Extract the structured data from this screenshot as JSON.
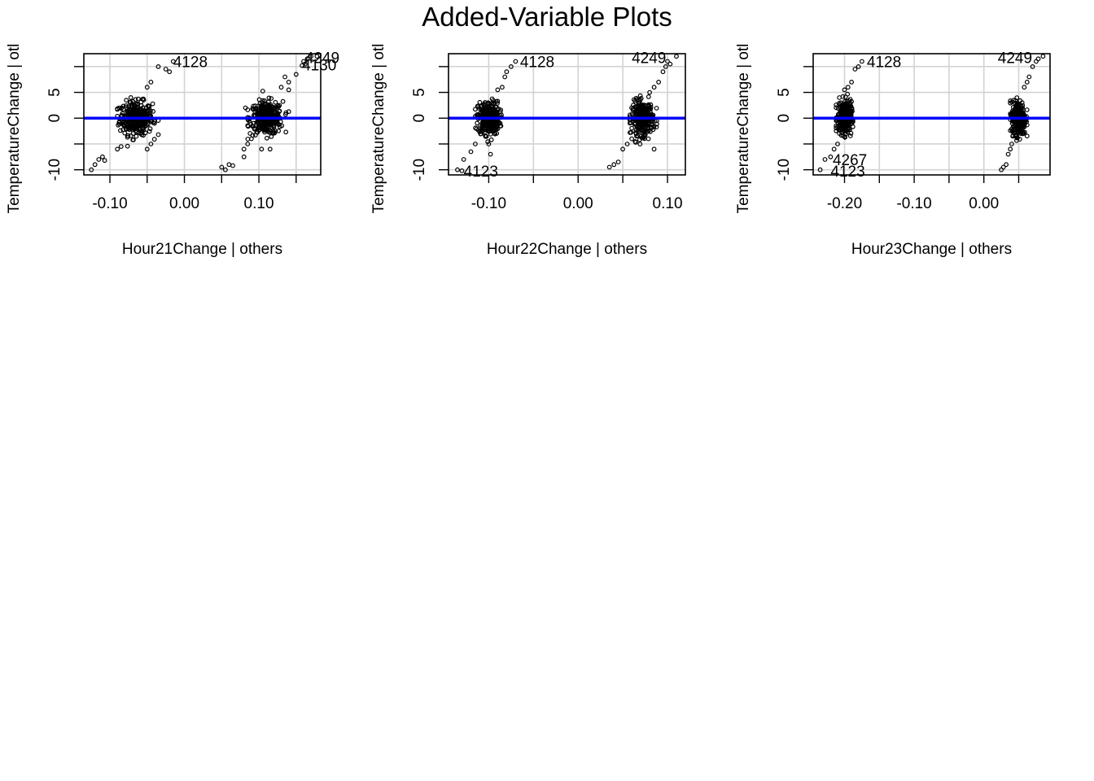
{
  "figure": {
    "title": "Added-Variable Plots"
  },
  "chart_data": [
    {
      "type": "scatter",
      "title": "",
      "xlabel": "Hour21Change | others",
      "ylabel": "TemperatureChange  | otl",
      "xlim": [
        -0.135,
        0.183
      ],
      "ylim": [
        -11,
        12.5
      ],
      "xticks": [
        -0.1,
        0.0,
        0.1
      ],
      "xtick_labels": [
        "-0.10",
        "0.00",
        "0.10"
      ],
      "yticks": [
        -10,
        0,
        5
      ],
      "ytick_labels": [
        "-10",
        "0",
        "5"
      ],
      "grid": true,
      "fit_line": {
        "slope": 0,
        "intercept": 0,
        "color": "#0000ff"
      },
      "clusters": [
        {
          "cx": -0.065,
          "cy": 0,
          "sx": 0.011,
          "sy": 1.6,
          "n": 320,
          "xmin": -0.09,
          "xmax": -0.035,
          "ymin": -6,
          "ymax": 5.5
        },
        {
          "cx": 0.11,
          "cy": 0,
          "sx": 0.011,
          "sy": 1.6,
          "n": 320,
          "xmin": 0.085,
          "xmax": 0.14,
          "ymin": -6,
          "ymax": 5.5
        }
      ],
      "points": [
        [
          -0.125,
          -10
        ],
        [
          -0.12,
          -9
        ],
        [
          -0.115,
          -8
        ],
        [
          -0.11,
          -7.5
        ],
        [
          -0.107,
          -8.2
        ],
        [
          -0.09,
          -6
        ],
        [
          -0.085,
          -5.5
        ],
        [
          -0.05,
          -6
        ],
        [
          -0.045,
          -5
        ],
        [
          -0.04,
          -1
        ],
        [
          -0.045,
          7
        ],
        [
          -0.035,
          10
        ],
        [
          -0.025,
          9.5
        ],
        [
          -0.02,
          9
        ],
        [
          -0.015,
          11
        ],
        [
          -0.05,
          6
        ],
        [
          0.05,
          -9.5
        ],
        [
          0.055,
          -10
        ],
        [
          0.06,
          -9
        ],
        [
          0.065,
          -9.2
        ],
        [
          0.08,
          -7.5
        ],
        [
          0.08,
          -6
        ],
        [
          0.085,
          -5
        ],
        [
          0.09,
          -4
        ],
        [
          0.082,
          2
        ],
        [
          0.115,
          -6
        ],
        [
          0.13,
          6
        ],
        [
          0.14,
          7
        ],
        [
          0.14,
          5.5
        ],
        [
          0.135,
          8
        ],
        [
          0.15,
          8.5
        ],
        [
          0.16,
          11
        ],
        [
          0.165,
          11.5
        ],
        [
          0.17,
          12
        ],
        [
          0.162,
          10.5
        ],
        [
          0.158,
          10.2
        ],
        [
          0.178,
          12
        ]
      ],
      "labels": [
        {
          "text": "4128",
          "x": -0.015,
          "y": 11
        },
        {
          "text": "4249",
          "x": 0.162,
          "y": 11.8
        },
        {
          "text": "4130",
          "x": 0.158,
          "y": 10.4
        }
      ]
    },
    {
      "type": "scatter",
      "title": "",
      "xlabel": "Hour22Change | others",
      "ylabel": "TemperatureChange  | otl",
      "xlim": [
        -0.145,
        0.12
      ],
      "ylim": [
        -11,
        12.5
      ],
      "xticks": [
        -0.1,
        0.0,
        0.1
      ],
      "xtick_labels": [
        "-0.10",
        "0.00",
        "0.10"
      ],
      "yticks": [
        -10,
        0,
        5
      ],
      "ytick_labels": [
        "-10",
        "0",
        "5"
      ],
      "grid": true,
      "fit_line": {
        "slope": 0,
        "intercept": 0,
        "color": "#0000ff"
      },
      "clusters": [
        {
          "cx": -0.1,
          "cy": 0,
          "sx": 0.006,
          "sy": 1.6,
          "n": 320,
          "xmin": -0.115,
          "xmax": -0.085,
          "ymin": -6,
          "ymax": 5.5
        },
        {
          "cx": 0.072,
          "cy": 0,
          "sx": 0.006,
          "sy": 1.6,
          "n": 320,
          "xmin": 0.058,
          "xmax": 0.088,
          "ymin": -6,
          "ymax": 5.5
        }
      ],
      "points": [
        [
          -0.135,
          -10
        ],
        [
          -0.13,
          -10.2
        ],
        [
          -0.128,
          -8
        ],
        [
          -0.12,
          -6.5
        ],
        [
          -0.115,
          -5
        ],
        [
          -0.1,
          -5
        ],
        [
          -0.098,
          -7
        ],
        [
          -0.09,
          5.5
        ],
        [
          -0.085,
          6
        ],
        [
          -0.082,
          8
        ],
        [
          -0.08,
          9
        ],
        [
          -0.075,
          10
        ],
        [
          -0.07,
          11
        ],
        [
          0.035,
          -9.5
        ],
        [
          0.04,
          -9
        ],
        [
          0.045,
          -8.5
        ],
        [
          0.05,
          -6
        ],
        [
          0.055,
          -5
        ],
        [
          0.06,
          -4
        ],
        [
          0.065,
          -3
        ],
        [
          0.085,
          -6
        ],
        [
          0.08,
          5
        ],
        [
          0.085,
          6
        ],
        [
          0.09,
          7
        ],
        [
          0.095,
          9
        ],
        [
          0.098,
          10
        ],
        [
          0.1,
          11
        ],
        [
          0.103,
          10.5
        ],
        [
          0.11,
          12
        ]
      ],
      "labels": [
        {
          "text": "4128",
          "x": -0.065,
          "y": 11
        },
        {
          "text": "4249",
          "x": 0.06,
          "y": 11.8
        },
        {
          "text": "4123",
          "x": -0.128,
          "y": -10.2
        }
      ]
    },
    {
      "type": "scatter",
      "title": "",
      "xlabel": "Hour23Change | others",
      "ylabel": "TemperatureChange  | otl",
      "xlim": [
        -0.245,
        0.095
      ],
      "ylim": [
        -11,
        12.5
      ],
      "xticks": [
        -0.2,
        -0.1,
        0.0
      ],
      "xtick_labels": [
        "-0.20",
        "-0.10",
        "0.00"
      ],
      "yticks": [
        -10,
        0,
        5
      ],
      "ytick_labels": [
        "-10",
        "0",
        "5"
      ],
      "grid": true,
      "fit_line": {
        "slope": 0,
        "intercept": 0,
        "color": "#0000ff"
      },
      "clusters": [
        {
          "cx": -0.2,
          "cy": 0,
          "sx": 0.005,
          "sy": 1.6,
          "n": 320,
          "xmin": -0.212,
          "xmax": -0.188,
          "ymin": -6,
          "ymax": 5.5
        },
        {
          "cx": 0.05,
          "cy": 0,
          "sx": 0.005,
          "sy": 1.6,
          "n": 320,
          "xmin": 0.038,
          "xmax": 0.062,
          "ymin": -6,
          "ymax": 5.5
        }
      ],
      "points": [
        [
          -0.235,
          -10
        ],
        [
          -0.228,
          -8
        ],
        [
          -0.22,
          -7.5
        ],
        [
          -0.215,
          -6
        ],
        [
          -0.21,
          -5
        ],
        [
          -0.2,
          5.5
        ],
        [
          -0.195,
          6
        ],
        [
          -0.19,
          7
        ],
        [
          -0.185,
          9.5
        ],
        [
          -0.18,
          10
        ],
        [
          -0.175,
          11
        ],
        [
          0.025,
          -10
        ],
        [
          0.028,
          -9.5
        ],
        [
          0.032,
          -9
        ],
        [
          0.035,
          -7
        ],
        [
          0.038,
          -6
        ],
        [
          0.04,
          -5
        ],
        [
          0.058,
          6
        ],
        [
          0.062,
          7
        ],
        [
          0.065,
          8
        ],
        [
          0.07,
          10
        ],
        [
          0.075,
          11
        ],
        [
          0.078,
          11.5
        ],
        [
          0.085,
          12
        ]
      ],
      "labels": [
        {
          "text": "4128",
          "x": -0.168,
          "y": 11
        },
        {
          "text": "4249",
          "x": 0.02,
          "y": 11.8
        },
        {
          "text": "4267",
          "x": -0.217,
          "y": -8
        },
        {
          "text": "4123",
          "x": -0.22,
          "y": -10.2
        }
      ]
    }
  ]
}
